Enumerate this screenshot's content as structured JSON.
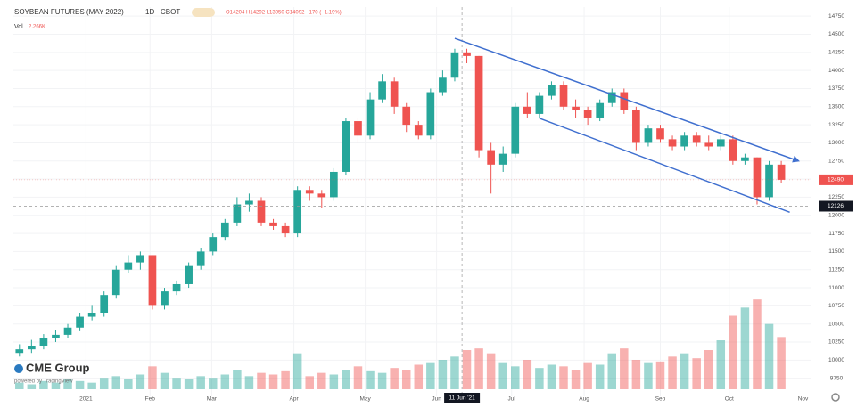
{
  "header": {
    "title": "SOYBEAN FUTURES (MAY 2022)",
    "interval": "1D",
    "exchange": "CBOT",
    "ohlc": "O14204 H14292 L13950 C14092 −170 (−1.19%)",
    "volume_label": "Vol",
    "volume_value": "2.266K"
  },
  "branding": {
    "logo": "CME Group",
    "powered_by": "powered by TradingView"
  },
  "chart_data": {
    "type": "candlestick",
    "xlim": [
      0,
      66
    ],
    "xticks": [
      {
        "value": 6,
        "label": "2021"
      },
      {
        "value": 11.3,
        "label": "Feb"
      },
      {
        "value": 16.4,
        "label": "Mar"
      },
      {
        "value": 23.2,
        "label": "Apr"
      },
      {
        "value": 29.1,
        "label": "May"
      },
      {
        "value": 35,
        "label": "Jun"
      },
      {
        "value": 41.2,
        "label": "Jul"
      },
      {
        "value": 47.2,
        "label": "Aug"
      },
      {
        "value": 53.5,
        "label": "Sep"
      },
      {
        "value": 59.2,
        "label": "Oct"
      },
      {
        "value": 65.3,
        "label": "Nov"
      }
    ],
    "ylim": [
      9500,
      14875
    ],
    "yticks": [
      9750,
      10000,
      10250,
      10500,
      10750,
      11000,
      11250,
      11500,
      11750,
      12000,
      12250,
      12500,
      12750,
      13000,
      13250,
      13500,
      13750,
      14000,
      14250,
      14500,
      14750
    ],
    "y2lim": [
      0,
      60
    ],
    "grid": true,
    "up_color": "#26a69a",
    "down_color": "#ef5350",
    "series": [
      {
        "open": [
          10100,
          10150,
          10200,
          10300,
          10350,
          10450,
          10600,
          10650,
          10900,
          11250,
          11350,
          11450,
          10750,
          10950,
          11050,
          11300,
          11500,
          11700,
          11900,
          12150,
          12200,
          11900,
          11850,
          11750,
          12350,
          12300,
          12250,
          12600,
          13300,
          13100,
          13600,
          13850,
          13500,
          13250,
          13100,
          13700,
          13900,
          14250,
          14200,
          12900,
          12700,
          12850,
          13500,
          13400,
          13650,
          13800,
          13500,
          13450,
          13350,
          13550,
          13700,
          13450,
          13000,
          13200,
          13050,
          12950,
          13100,
          13000,
          12950,
          13050,
          12750,
          12800,
          12250,
          12700
        ],
        "high": [
          10220,
          10280,
          10360,
          10420,
          10500,
          10650,
          10750,
          10950,
          11300,
          11450,
          11500,
          11450,
          11000,
          11100,
          11350,
          11550,
          11750,
          11950,
          12250,
          12300,
          12250,
          11950,
          11900,
          12400,
          12400,
          12350,
          12650,
          13350,
          13350,
          13700,
          13950,
          13900,
          13550,
          13300,
          13750,
          14000,
          14300,
          14300,
          14200,
          13000,
          12950,
          13550,
          13700,
          13700,
          13850,
          13850,
          13600,
          13500,
          13600,
          13750,
          13750,
          13500,
          13250,
          13250,
          13100,
          13150,
          13150,
          13100,
          13100,
          13100,
          12850,
          12800,
          12750,
          12750
        ],
        "low": [
          10050,
          10100,
          10150,
          10250,
          10300,
          10400,
          10550,
          10600,
          10850,
          11200,
          11250,
          10700,
          10700,
          10900,
          11000,
          11250,
          11450,
          11650,
          11850,
          12050,
          11850,
          11800,
          11700,
          11700,
          12200,
          12100,
          12200,
          12550,
          13000,
          13050,
          13550,
          13400,
          13150,
          13050,
          13050,
          13650,
          13850,
          14100,
          12800,
          12300,
          12600,
          12800,
          13350,
          13350,
          13600,
          13450,
          13350,
          13250,
          13300,
          13500,
          13400,
          12900,
          12950,
          13000,
          12900,
          12900,
          12950,
          12900,
          12900,
          12700,
          12700,
          12150,
          12200,
          12450
        ],
        "close": [
          10150,
          10200,
          10300,
          10350,
          10450,
          10600,
          10650,
          10900,
          11250,
          11350,
          11450,
          10750,
          10950,
          11050,
          11300,
          11500,
          11700,
          11900,
          12150,
          12200,
          11900,
          11850,
          11750,
          12350,
          12300,
          12250,
          12600,
          13300,
          13100,
          13600,
          13850,
          13500,
          13250,
          13100,
          13700,
          13900,
          14250,
          14200,
          12900,
          12700,
          12850,
          13500,
          13400,
          13650,
          13800,
          13500,
          13450,
          13350,
          13550,
          13700,
          13450,
          13000,
          13200,
          13050,
          12950,
          13100,
          13000,
          12950,
          13050,
          12750,
          12800,
          12250,
          12700,
          12490
        ]
      }
    ],
    "volume": {
      "axis": "y2",
      "values": [
        4,
        3,
        5,
        4,
        6,
        5,
        4,
        7,
        8,
        6,
        9,
        14,
        10,
        7,
        6,
        8,
        7,
        9,
        12,
        8,
        10,
        9,
        11,
        22,
        8,
        10,
        9,
        12,
        14,
        11,
        10,
        13,
        12,
        15,
        16,
        18,
        20,
        24,
        25,
        22,
        16,
        14,
        18,
        13,
        15,
        14,
        12,
        16,
        15,
        22,
        25,
        18,
        16,
        17,
        20,
        22,
        19,
        24,
        30,
        45,
        50,
        55,
        40,
        32
      ]
    },
    "crosshair": {
      "x": {
        "value": 37.1,
        "label": "11 Jun '21"
      },
      "y": 12126
    },
    "trendline_color": "#3f6fcf",
    "trendlines": [
      {
        "x": [
          36.5,
          64.9
        ],
        "y": [
          14444,
          12752
        ],
        "arrow": true
      },
      {
        "x": [
          43.5,
          64.2
        ],
        "y": [
          13340,
          12042
        ],
        "arrow": false
      }
    ]
  }
}
